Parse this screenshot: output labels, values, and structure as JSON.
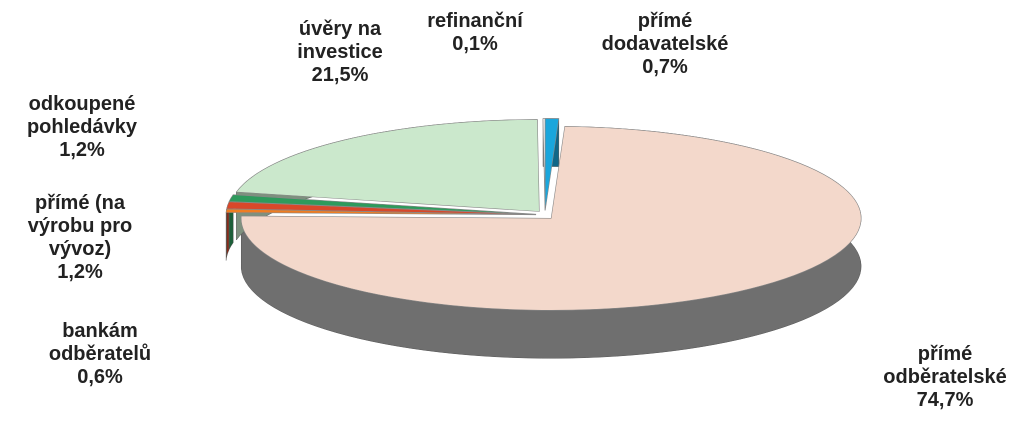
{
  "chart_data": {
    "type": "pie",
    "categories": [
      "přímé dodavatelské",
      "přímé odběratelské",
      "bankám odběratelů",
      "přímé (na výrobu pro vývoz)",
      "odkoupené pohledávky",
      "úvěry na investice",
      "refinanční"
    ],
    "values": [
      0.7,
      74.7,
      0.6,
      1.2,
      1.2,
      21.5,
      0.1
    ],
    "value_labels": [
      "0,7%",
      "74,7%",
      "0,6%",
      "1,2%",
      "1,2%",
      "21,5%",
      "0,1%"
    ],
    "colors": [
      "#1aa6dc",
      "#f3d8cb",
      "#ef7d22",
      "#d8482a",
      "#2e9a5c",
      "#cbe8cc",
      "#ffffff"
    ]
  }
}
